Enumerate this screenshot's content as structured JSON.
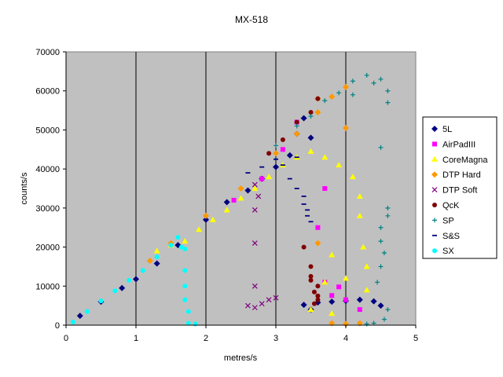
{
  "chart_data": {
    "type": "scatter",
    "title": "MX-518",
    "xlabel": "metres/s",
    "ylabel": "counts/s",
    "xlim": [
      0,
      5
    ],
    "ylim": [
      0,
      70000
    ],
    "x_ticks": [
      "0",
      "1",
      "2",
      "3",
      "4",
      "5"
    ],
    "y_ticks": [
      "0",
      "10000",
      "20000",
      "30000",
      "40000",
      "50000",
      "60000",
      "70000"
    ],
    "vertical_grid": true,
    "horizontal_grid": false,
    "plot_background": "#c0c0c0",
    "legend_position": "right",
    "series": [
      {
        "name": "5L",
        "color": "#000080",
        "marker": "diamond",
        "points": [
          [
            0.2,
            2400
          ],
          [
            0.5,
            6000
          ],
          [
            0.8,
            9500
          ],
          [
            1.0,
            11800
          ],
          [
            1.3,
            15800
          ],
          [
            1.6,
            20500
          ],
          [
            2.0,
            27000
          ],
          [
            2.3,
            31500
          ],
          [
            2.6,
            34500
          ],
          [
            2.8,
            37500
          ],
          [
            3.0,
            40500
          ],
          [
            3.2,
            43500
          ],
          [
            3.3,
            49000
          ],
          [
            3.4,
            53000
          ],
          [
            3.5,
            48000
          ],
          [
            3.4,
            5200
          ],
          [
            3.5,
            4000
          ],
          [
            3.6,
            5800
          ],
          [
            3.8,
            6000
          ],
          [
            4.0,
            6200
          ],
          [
            4.2,
            6500
          ],
          [
            4.4,
            6100
          ],
          [
            4.5,
            5000
          ]
        ]
      },
      {
        "name": "AirPadIII",
        "color": "#ff00ff",
        "marker": "square",
        "points": [
          [
            2.4,
            32000
          ],
          [
            2.8,
            37500
          ],
          [
            3.1,
            45000
          ],
          [
            3.3,
            52000
          ],
          [
            3.7,
            35000
          ],
          [
            3.6,
            25000
          ],
          [
            3.7,
            11000
          ],
          [
            3.8,
            7600
          ],
          [
            3.9,
            9800
          ],
          [
            4.0,
            6500
          ],
          [
            4.2,
            4000
          ]
        ]
      },
      {
        "name": "CoreMagna",
        "color": "#ffff00",
        "marker": "triangle",
        "points": [
          [
            1.3,
            19000
          ],
          [
            1.5,
            20500
          ],
          [
            1.7,
            21500
          ],
          [
            1.9,
            24500
          ],
          [
            2.1,
            27000
          ],
          [
            2.3,
            29500
          ],
          [
            2.5,
            32500
          ],
          [
            2.7,
            35000
          ],
          [
            2.9,
            38000
          ],
          [
            3.1,
            41000
          ],
          [
            3.3,
            43000
          ],
          [
            3.5,
            44500
          ],
          [
            3.7,
            43000
          ],
          [
            3.9,
            41000
          ],
          [
            4.1,
            38000
          ],
          [
            4.2,
            33000
          ],
          [
            4.2,
            28000
          ],
          [
            4.25,
            20000
          ],
          [
            4.3,
            9000
          ],
          [
            3.8,
            18000
          ],
          [
            3.5,
            4000
          ],
          [
            3.7,
            11000
          ],
          [
            4.0,
            12000
          ],
          [
            4.3,
            15000
          ],
          [
            3.8,
            3000
          ]
        ]
      },
      {
        "name": "DTP Hard",
        "color": "#ff9900",
        "marker": "diamond",
        "points": [
          [
            1.2,
            16500
          ],
          [
            1.5,
            21000
          ],
          [
            2.0,
            28000
          ],
          [
            2.5,
            35000
          ],
          [
            3.0,
            44000
          ],
          [
            3.3,
            49000
          ],
          [
            3.6,
            54500
          ],
          [
            3.8,
            58500
          ],
          [
            4.0,
            61000
          ],
          [
            3.6,
            58000
          ],
          [
            4.0,
            50500
          ],
          [
            3.6,
            21000
          ],
          [
            3.8,
            500
          ],
          [
            4.0,
            300
          ],
          [
            4.2,
            500
          ]
        ]
      },
      {
        "name": "DTP Soft",
        "color": "#800080",
        "marker": "x",
        "points": [
          [
            2.6,
            5000
          ],
          [
            2.7,
            4500
          ],
          [
            2.8,
            5500
          ],
          [
            2.9,
            6500
          ],
          [
            3.0,
            7000
          ],
          [
            2.7,
            10000
          ],
          [
            2.7,
            21000
          ],
          [
            2.7,
            36000
          ],
          [
            2.7,
            29500
          ],
          [
            2.75,
            33000
          ]
        ]
      },
      {
        "name": "QcK",
        "color": "#800000",
        "marker": "circle",
        "points": [
          [
            2.9,
            44000
          ],
          [
            3.1,
            47500
          ],
          [
            3.3,
            52000
          ],
          [
            3.5,
            54500
          ],
          [
            3.6,
            58000
          ],
          [
            3.4,
            20000
          ],
          [
            3.5,
            15000
          ],
          [
            3.5,
            11500
          ],
          [
            3.55,
            8500
          ],
          [
            3.6,
            6500
          ],
          [
            3.55,
            5500
          ],
          [
            3.6,
            10000
          ],
          [
            3.5,
            12500
          ],
          [
            3.6,
            7500
          ]
        ]
      },
      {
        "name": "SP",
        "color": "#008080",
        "marker": "plus",
        "points": [
          [
            3.0,
            46000
          ],
          [
            3.3,
            51000
          ],
          [
            3.5,
            53500
          ],
          [
            3.7,
            57500
          ],
          [
            3.9,
            59500
          ],
          [
            4.1,
            62500
          ],
          [
            4.3,
            64000
          ],
          [
            4.1,
            59000
          ],
          [
            4.4,
            62000
          ],
          [
            4.5,
            63000
          ],
          [
            4.6,
            60000
          ],
          [
            4.6,
            57000
          ],
          [
            4.5,
            45500
          ],
          [
            4.6,
            30000
          ],
          [
            4.6,
            28000
          ],
          [
            4.5,
            25000
          ],
          [
            4.5,
            21500
          ],
          [
            4.55,
            18500
          ],
          [
            4.5,
            15000
          ],
          [
            4.45,
            11000
          ],
          [
            4.6,
            4000
          ],
          [
            4.55,
            1500
          ],
          [
            4.3,
            300
          ],
          [
            4.4,
            500
          ]
        ]
      },
      {
        "name": "S&S",
        "color": "#000080",
        "marker": "dash",
        "points": [
          [
            2.6,
            39000
          ],
          [
            2.8,
            40500
          ],
          [
            3.0,
            42500
          ],
          [
            3.1,
            41000
          ],
          [
            3.2,
            37500
          ],
          [
            3.3,
            35000
          ],
          [
            3.4,
            33000
          ],
          [
            3.4,
            31000
          ],
          [
            3.45,
            29500
          ],
          [
            3.5,
            26500
          ],
          [
            3.45,
            28000
          ],
          [
            3.3,
            43000
          ]
        ]
      },
      {
        "name": "SX",
        "color": "#00ffff",
        "marker": "circle",
        "points": [
          [
            0.1,
            800
          ],
          [
            0.3,
            3500
          ],
          [
            0.5,
            6200
          ],
          [
            0.7,
            8800
          ],
          [
            0.9,
            11500
          ],
          [
            1.1,
            14000
          ],
          [
            1.3,
            17500
          ],
          [
            1.5,
            20500
          ],
          [
            1.6,
            22500
          ],
          [
            1.65,
            20000
          ],
          [
            1.7,
            19500
          ],
          [
            1.7,
            14000
          ],
          [
            1.7,
            10000
          ],
          [
            1.7,
            6500
          ],
          [
            1.75,
            3500
          ],
          [
            1.75,
            500
          ],
          [
            1.85,
            300
          ]
        ]
      }
    ]
  }
}
